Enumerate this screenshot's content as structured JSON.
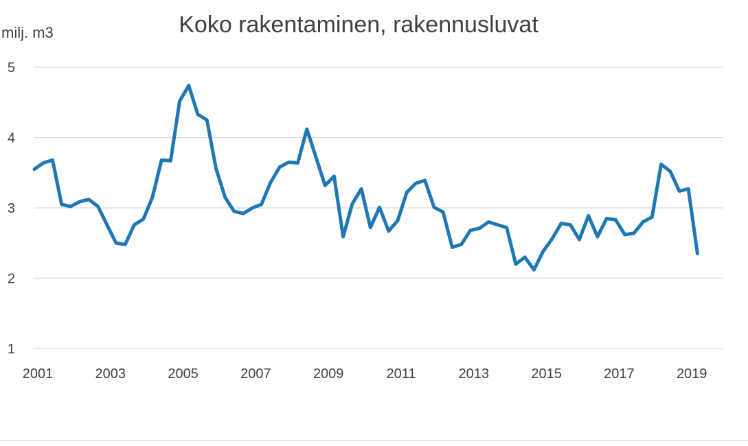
{
  "chart_data": {
    "type": "line",
    "title": "Koko rakentaminen, rakennusluvat",
    "ylabel": "milj. m3",
    "xlabel": "",
    "ylim": [
      1,
      5
    ],
    "xlim": [
      2001,
      2019.75
    ],
    "y_ticks": [
      1,
      2,
      3,
      4,
      5
    ],
    "x_ticks": [
      2001,
      2003,
      2005,
      2007,
      2009,
      2011,
      2013,
      2015,
      2017,
      2019
    ],
    "grid": true,
    "legend": "none",
    "series_color": "#1f77b4",
    "series": [
      {
        "x": [
          2001.0,
          2001.25,
          2001.5,
          2001.75,
          2002.0,
          2002.25,
          2002.5,
          2002.75,
          2003.0,
          2003.25,
          2003.5,
          2003.75,
          2004.0,
          2004.25,
          2004.5,
          2004.75,
          2005.0,
          2005.25,
          2005.5,
          2005.75,
          2006.0,
          2006.25,
          2006.5,
          2006.75,
          2007.0,
          2007.25,
          2007.5,
          2007.75,
          2008.0,
          2008.25,
          2008.5,
          2008.75,
          2009.0,
          2009.25,
          2009.5,
          2009.75,
          2010.0,
          2010.25,
          2010.5,
          2010.75,
          2011.0,
          2011.25,
          2011.5,
          2011.75,
          2012.0,
          2012.25,
          2012.5,
          2012.75,
          2013.0,
          2013.25,
          2013.5,
          2013.75,
          2014.0,
          2014.25,
          2014.5,
          2014.75,
          2015.0,
          2015.25,
          2015.5,
          2015.75,
          2016.0,
          2016.25,
          2016.5,
          2016.75,
          2017.0,
          2017.25,
          2017.5,
          2017.75,
          2018.0,
          2018.25,
          2018.5,
          2018.75,
          2019.0,
          2019.25
        ],
        "values": [
          3.55,
          3.64,
          3.68,
          3.05,
          3.02,
          3.09,
          3.12,
          3.02,
          2.76,
          2.5,
          2.48,
          2.76,
          2.84,
          3.15,
          3.68,
          3.67,
          4.52,
          4.74,
          4.33,
          4.25,
          3.56,
          3.15,
          2.95,
          2.92,
          3.0,
          3.05,
          3.36,
          3.58,
          3.65,
          3.64,
          4.12,
          3.72,
          3.32,
          3.45,
          2.59,
          3.06,
          3.27,
          2.72,
          3.01,
          2.67,
          2.82,
          3.22,
          3.35,
          3.39,
          3.01,
          2.94,
          2.44,
          2.48,
          2.68,
          2.71,
          2.8,
          2.76,
          2.72,
          2.2,
          2.3,
          2.12,
          2.38,
          2.56,
          2.78,
          2.76,
          2.55,
          2.89,
          2.59,
          2.85,
          2.83,
          2.62,
          2.64,
          2.8,
          2.87,
          3.62,
          3.52,
          3.24,
          3.27,
          2.35
        ]
      }
    ]
  }
}
